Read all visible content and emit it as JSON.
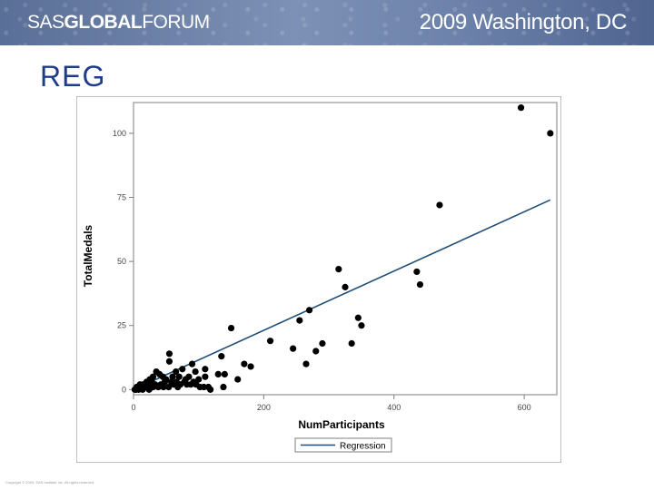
{
  "banner": {
    "logo_sas": "SAS",
    "logo_global": "GLOBAL",
    "logo_forum": "FORUM",
    "event": "2009 Washington, DC",
    "colors": {
      "start": "#5a6f97",
      "end": "#4f6590"
    }
  },
  "slide": {
    "title": "REG",
    "title_color": "#1f3c8c"
  },
  "footer": {
    "text": "Copyright © 2009, SAS Institute Inc. All rights reserved."
  },
  "chart_data": {
    "type": "scatter",
    "title": "",
    "xlabel": "NumParticipants",
    "ylabel": "TotalMedals",
    "xlim": [
      0,
      650
    ],
    "ylim": [
      -2,
      112
    ],
    "xticks": [
      0,
      200,
      400,
      600
    ],
    "yticks": [
      0,
      25,
      50,
      75,
      100
    ],
    "grid": false,
    "legend": {
      "placement": "bottom",
      "entries": [
        "Regression"
      ]
    },
    "regression": {
      "x": [
        0,
        640
      ],
      "y": [
        0,
        74
      ],
      "color": "#1f4e79"
    },
    "series": [
      {
        "marker": "filled-circle",
        "color": "#000000",
        "points": [
          [
            595,
            110
          ],
          [
            640,
            100
          ],
          [
            470,
            72
          ],
          [
            315,
            47
          ],
          [
            435,
            46
          ],
          [
            440,
            41
          ],
          [
            325,
            40
          ],
          [
            270,
            31
          ],
          [
            345,
            28
          ],
          [
            255,
            27
          ],
          [
            350,
            25
          ],
          [
            150,
            24
          ],
          [
            210,
            19
          ],
          [
            290,
            18
          ],
          [
            335,
            18
          ],
          [
            245,
            16
          ],
          [
            280,
            15
          ],
          [
            135,
            13
          ],
          [
            170,
            10
          ],
          [
            265,
            10
          ],
          [
            180,
            9
          ],
          [
            160,
            4
          ],
          [
            130,
            6
          ],
          [
            140,
            6
          ],
          [
            55,
            14
          ],
          [
            55,
            11
          ],
          [
            90,
            10
          ],
          [
            110,
            8
          ],
          [
            75,
            8
          ],
          [
            65,
            7
          ],
          [
            95,
            7
          ],
          [
            35,
            7
          ],
          [
            40,
            6
          ],
          [
            45,
            5
          ],
          [
            30,
            5
          ],
          [
            25,
            4
          ],
          [
            60,
            5
          ],
          [
            70,
            5
          ],
          [
            80,
            4
          ],
          [
            100,
            4
          ],
          [
            110,
            5
          ],
          [
            85,
            5
          ],
          [
            20,
            3
          ],
          [
            15,
            2
          ],
          [
            10,
            2
          ],
          [
            5,
            1
          ],
          [
            8,
            0
          ],
          [
            2,
            0
          ],
          [
            12,
            1
          ],
          [
            18,
            1
          ],
          [
            22,
            2
          ],
          [
            28,
            3
          ],
          [
            33,
            2
          ],
          [
            38,
            1
          ],
          [
            42,
            2
          ],
          [
            48,
            3
          ],
          [
            50,
            4
          ],
          [
            58,
            3
          ],
          [
            62,
            2
          ],
          [
            66,
            3
          ],
          [
            72,
            2
          ],
          [
            78,
            3
          ],
          [
            82,
            2
          ],
          [
            88,
            2
          ],
          [
            92,
            3
          ],
          [
            96,
            2
          ],
          [
            102,
            1
          ],
          [
            108,
            1
          ],
          [
            115,
            1
          ],
          [
            118,
            0
          ],
          [
            138,
            1
          ],
          [
            4,
            0
          ],
          [
            14,
            0
          ],
          [
            24,
            0
          ],
          [
            30,
            1
          ],
          [
            46,
            1
          ],
          [
            54,
            1
          ],
          [
            68,
            1
          ]
        ]
      }
    ]
  }
}
